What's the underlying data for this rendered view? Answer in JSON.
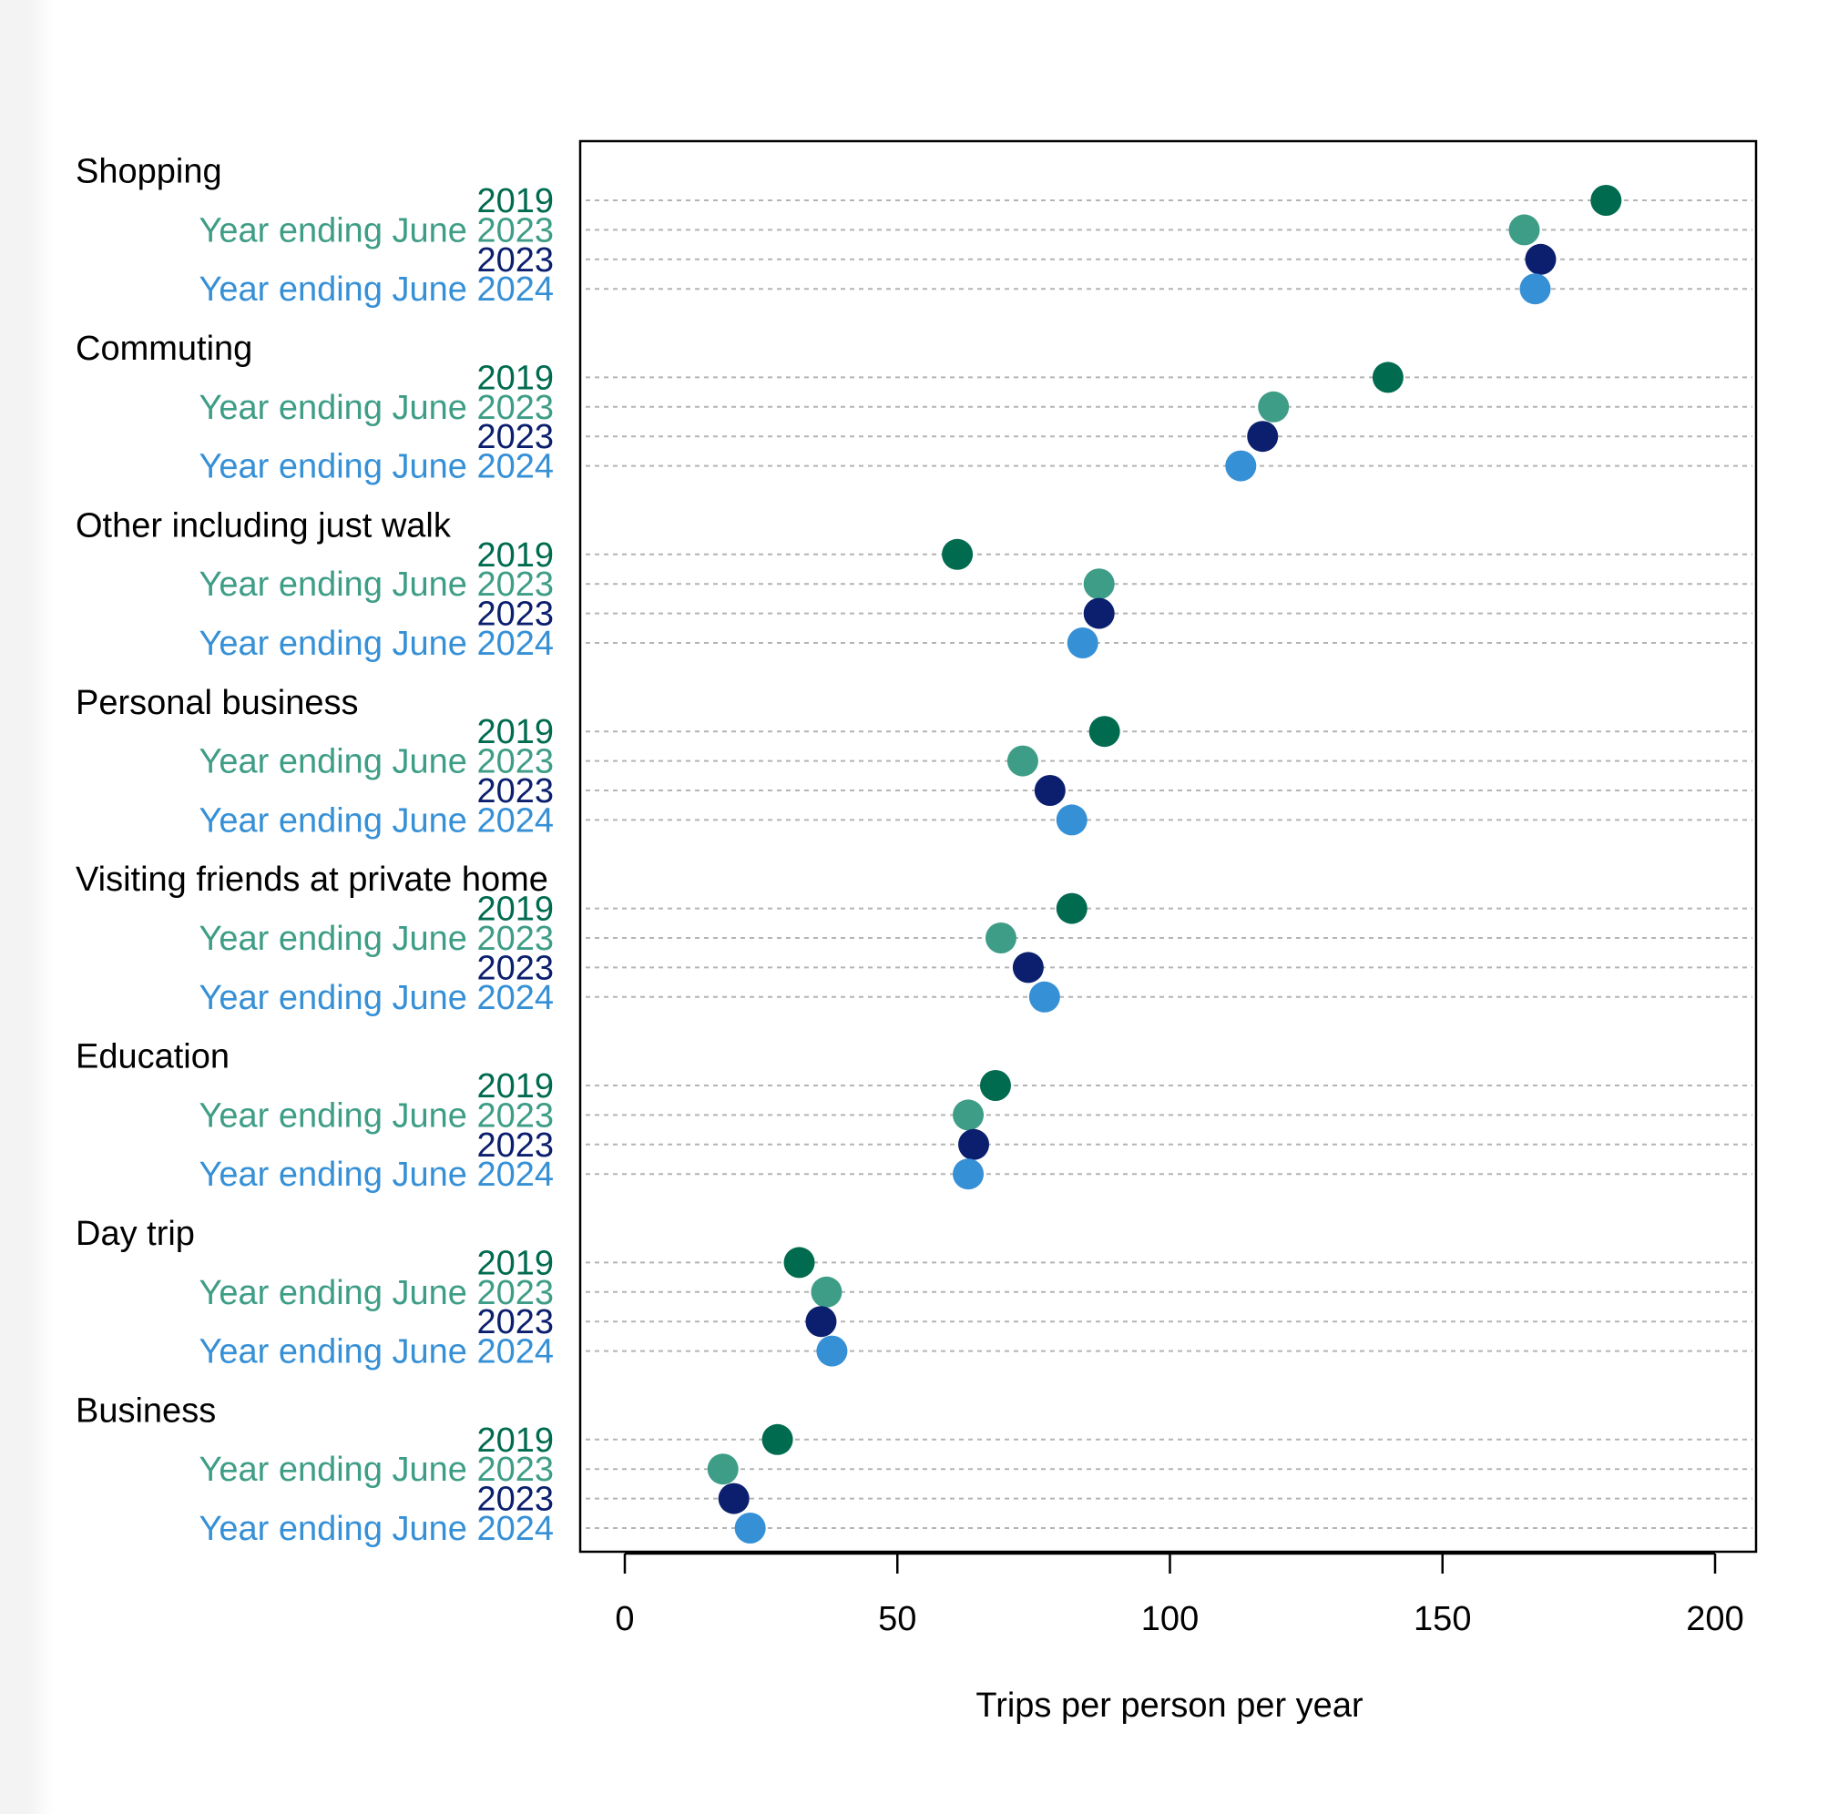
{
  "chart_data": {
    "type": "scatter",
    "orientation": "horizontal",
    "xlabel": "Trips per person per year",
    "xlim": [
      0,
      200
    ],
    "xticks": [
      0,
      50,
      100,
      150,
      200
    ],
    "grid": "dotted horizontal guide per row",
    "legend": "none (series named inline under each category)",
    "series": [
      {
        "name": "2019",
        "color": "#006b4f"
      },
      {
        "name": "Year ending June 2023",
        "color": "#3e9d86"
      },
      {
        "name": "2023",
        "color": "#0b1f6e"
      },
      {
        "name": "Year ending June 2024",
        "color": "#3690d6"
      }
    ],
    "categories": [
      {
        "name": "Shopping",
        "values": [
          180,
          165,
          168,
          167
        ]
      },
      {
        "name": "Commuting",
        "values": [
          140,
          119,
          117,
          113
        ]
      },
      {
        "name": "Other including just walk",
        "values": [
          61,
          87,
          87,
          84
        ]
      },
      {
        "name": "Personal business",
        "values": [
          88,
          73,
          78,
          82
        ]
      },
      {
        "name": "Visiting friends at private home",
        "values": [
          82,
          69,
          74,
          77
        ]
      },
      {
        "name": "Education",
        "values": [
          68,
          63,
          64,
          63
        ]
      },
      {
        "name": "Day trip",
        "values": [
          32,
          37,
          36,
          38
        ]
      },
      {
        "name": "Business",
        "values": [
          28,
          18,
          20,
          23
        ]
      }
    ]
  }
}
